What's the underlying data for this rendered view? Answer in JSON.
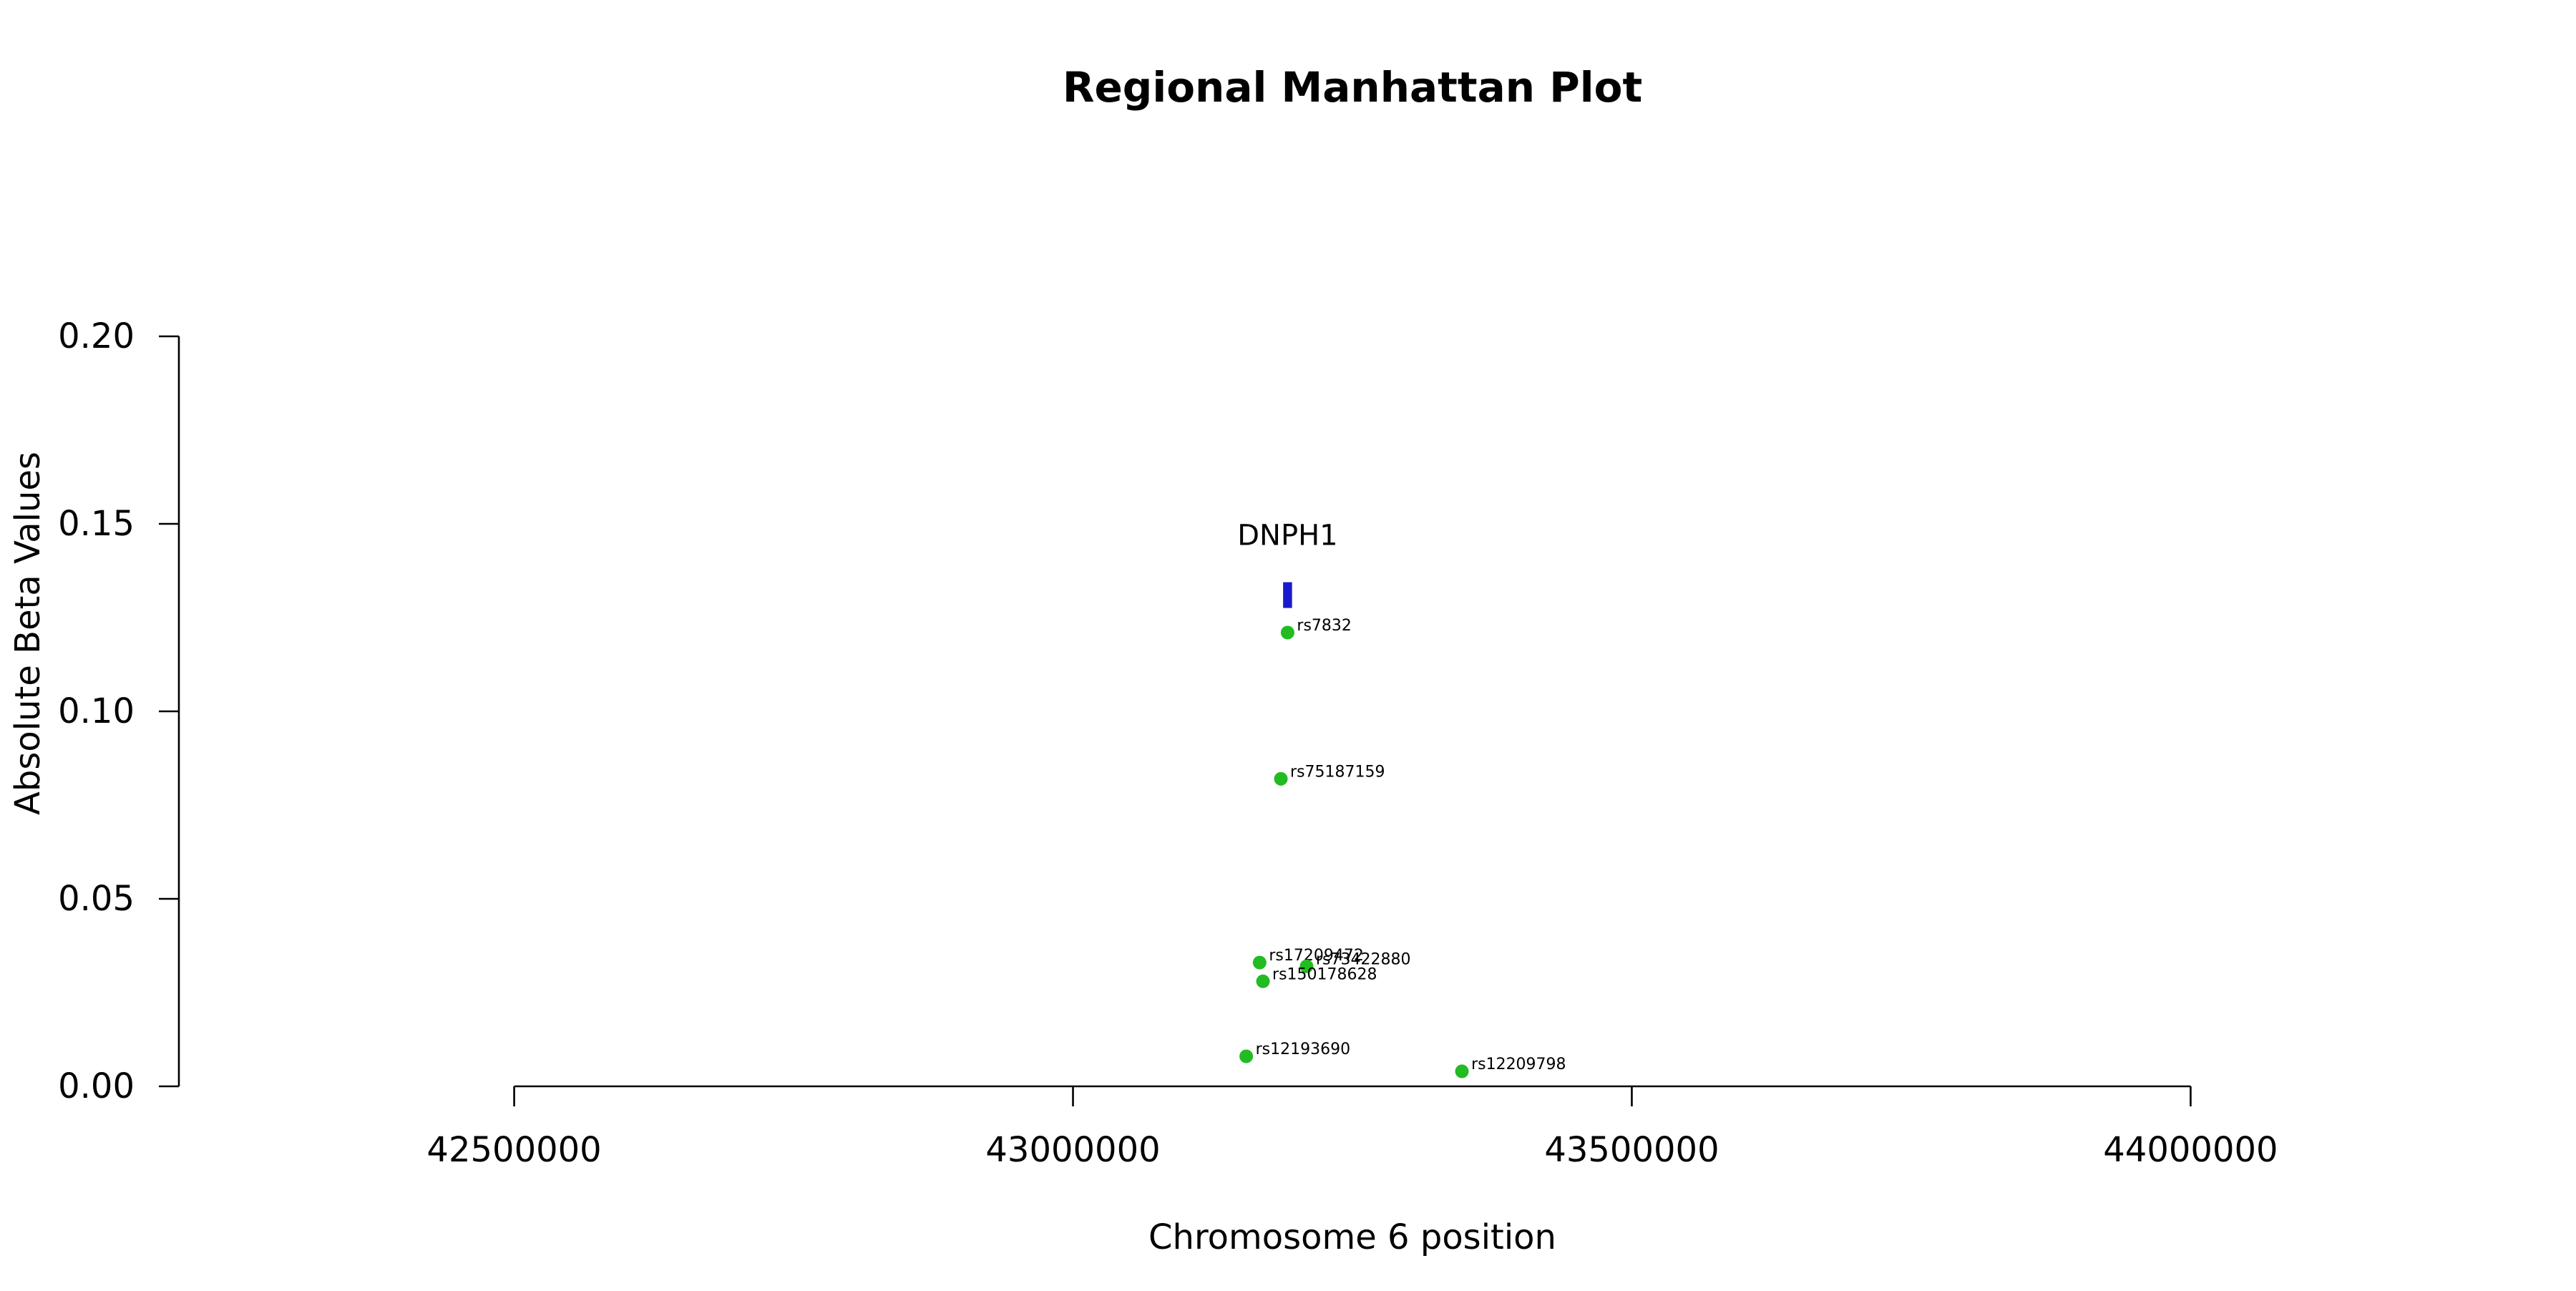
{
  "chart_data": {
    "type": "scatter",
    "title": "Regional Manhattan Plot",
    "xlabel": "Chromosome 6 position",
    "ylabel": "Absolute Beta Values",
    "xlim": [
      42200000,
      44300000
    ],
    "ylim": [
      0,
      0.2
    ],
    "x_axis_range": [
      42500000,
      44000000
    ],
    "x_ticks": [
      42500000,
      43000000,
      43500000,
      44000000
    ],
    "x_tick_labels": [
      "42500000",
      "43000000",
      "43500000",
      "44000000"
    ],
    "y_ticks": [
      0,
      0.05,
      0.1,
      0.15,
      0.2
    ],
    "y_tick_labels": [
      "0.00",
      "0.05",
      "0.10",
      "0.15",
      "0.20"
    ],
    "grid": false,
    "legend": "none",
    "point_color": "#22bb22",
    "gene_color": "#1a1acc",
    "genes": [
      {
        "name": "DNPH1",
        "start": 43188000,
        "end": 43196000,
        "y": 0.131
      }
    ],
    "points": [
      {
        "id": "rs7832",
        "x": 43192000,
        "y": 0.121
      },
      {
        "id": "rs75187159",
        "x": 43186000,
        "y": 0.082
      },
      {
        "id": "rs17209472",
        "x": 43167000,
        "y": 0.033
      },
      {
        "id": "rs73422880",
        "x": 43209000,
        "y": 0.032
      },
      {
        "id": "rs150178628",
        "x": 43170000,
        "y": 0.028
      },
      {
        "id": "rs12193690",
        "x": 43155000,
        "y": 0.008
      },
      {
        "id": "rs12209798",
        "x": 43348000,
        "y": 0.004
      }
    ]
  }
}
